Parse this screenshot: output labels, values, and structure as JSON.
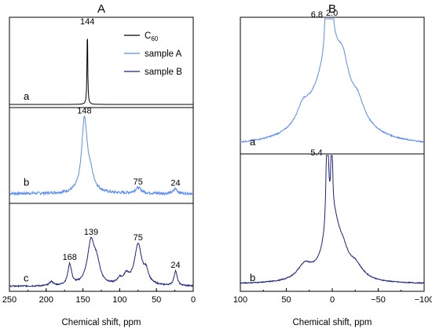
{
  "colors": {
    "black": "#000000",
    "light_blue": "#5b8def",
    "dark_blue": "#1a237e"
  },
  "chart_data": [
    {
      "type": "line",
      "panel_label": "A",
      "xlabel": "Chemical shift, ppm",
      "ylabel": "",
      "xlim": [
        250,
        0
      ],
      "x_reversed": true,
      "x_ticks": [
        250,
        200,
        150,
        100,
        50,
        0
      ],
      "grid": false,
      "legend": {
        "placement": "top-right",
        "entries": [
          {
            "text_main": "C",
            "text_sub": "60",
            "color": "#000000"
          },
          {
            "text_main": "sample A",
            "text_sub": "",
            "color": "#5b8def"
          },
          {
            "text_main": "sample B",
            "text_sub": "",
            "color": "#1a237e"
          }
        ]
      },
      "series": [
        {
          "label": "a",
          "color": "#000000",
          "baseline": 1.0,
          "noise": 0.0,
          "peaks": [
            {
              "x": 144,
              "h": 100,
              "w": 0.6
            }
          ],
          "peak_labels": [
            {
              "x": 144,
              "text": "144"
            }
          ]
        },
        {
          "label": "b",
          "color": "#5b8def",
          "baseline": 3.5,
          "noise": 1.8,
          "peaks": [
            {
              "x": 148,
              "h": 92,
              "w": 4.5
            },
            {
              "x": 140,
              "h": 20,
              "w": 6
            },
            {
              "x": 75,
              "h": 7,
              "w": 5
            },
            {
              "x": 24,
              "h": 6,
              "w": 3
            }
          ],
          "peak_labels": [
            {
              "x": 148,
              "text": "148"
            },
            {
              "x": 75,
              "text": "75"
            },
            {
              "x": 24,
              "text": "24"
            }
          ]
        },
        {
          "label": "c",
          "color": "#1a237e",
          "baseline": 1.5,
          "noise": 1.0,
          "peaks": [
            {
              "x": 193,
              "h": 6,
              "w": 3
            },
            {
              "x": 168,
              "h": 31,
              "w": 3
            },
            {
              "x": 139,
              "h": 64,
              "w": 6
            },
            {
              "x": 131,
              "h": 26,
              "w": 5
            },
            {
              "x": 100,
              "h": 8,
              "w": 4
            },
            {
              "x": 91,
              "h": 13,
              "w": 4
            },
            {
              "x": 75,
              "h": 60,
              "w": 6
            },
            {
              "x": 64,
              "h": 17,
              "w": 4
            },
            {
              "x": 24,
              "h": 22,
              "w": 2.5
            }
          ],
          "peak_labels": [
            {
              "x": 168,
              "text": "168"
            },
            {
              "x": 139,
              "text": "139"
            },
            {
              "x": 75,
              "text": "75"
            },
            {
              "x": 24,
              "text": "24"
            }
          ]
        }
      ]
    },
    {
      "type": "line",
      "panel_label": "B",
      "xlabel": "Chemical shift, ppm",
      "ylabel": "",
      "xlim": [
        100,
        -100
      ],
      "x_reversed": true,
      "x_ticks": [
        100,
        50,
        0,
        -50,
        -100
      ],
      "grid": false,
      "series": [
        {
          "label": "a",
          "color": "#5b8def",
          "baseline": 3,
          "noise": 0.4,
          "peaks": [
            {
              "x": 2.0,
              "h": 100,
              "w": 1.5
            },
            {
              "x": 6.8,
              "h": 32,
              "w": 1.5
            },
            {
              "x": 0,
              "h": 60,
              "w": 22
            },
            {
              "x": 32,
              "h": 10,
              "w": 8
            },
            {
              "x": -28,
              "h": 10,
              "w": 8
            },
            {
              "x": -12,
              "h": 12,
              "w": 6
            }
          ],
          "peak_labels": [
            {
              "x": 2.0,
              "text": "2.0"
            },
            {
              "x": 6.8,
              "text": "6.8"
            }
          ]
        },
        {
          "label": "b",
          "color": "#1a237e",
          "baseline": 2,
          "noise": 0.3,
          "peaks": [
            {
              "x": 5.4,
              "h": 85,
              "w": 1.2
            },
            {
              "x": 0.6,
              "h": 95,
              "w": 0.6
            },
            {
              "x": 0,
              "h": 42,
              "w": 10
            },
            {
              "x": 30,
              "h": 9,
              "w": 10
            },
            {
              "x": -25,
              "h": 8,
              "w": 10
            },
            {
              "x": -12,
              "h": 8,
              "w": 6
            }
          ],
          "peak_labels": [
            {
              "x": 5.4,
              "text": "5.4"
            }
          ]
        }
      ]
    }
  ]
}
